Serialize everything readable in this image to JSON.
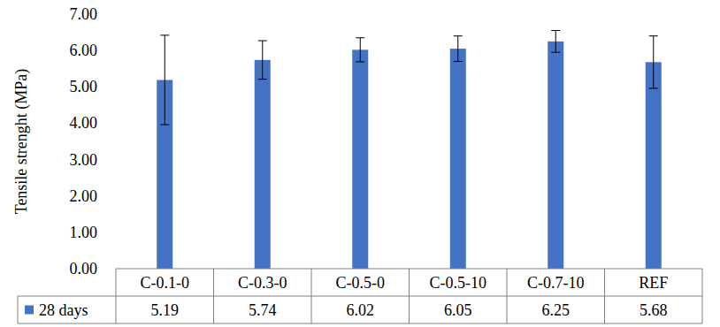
{
  "chart_data": {
    "type": "bar",
    "y_label": "Tensile strenght (MPa)",
    "categories": [
      "C-0.1-0",
      "C-0.3-0",
      "C-0.5-0",
      "C-0.5-10",
      "C-0.7-10",
      "REF"
    ],
    "series": [
      {
        "name": "28 days",
        "color": "#4472c4",
        "values": [
          5.19,
          5.74,
          6.02,
          6.05,
          6.25,
          5.68
        ],
        "errors": [
          1.23,
          0.53,
          0.33,
          0.35,
          0.3,
          0.72
        ]
      }
    ],
    "ylim": [
      0,
      7
    ],
    "yticks": [
      {
        "value": 0,
        "label": "0.00"
      },
      {
        "value": 1,
        "label": "1.00"
      },
      {
        "value": 2,
        "label": "2.00"
      },
      {
        "value": 3,
        "label": "3.00"
      },
      {
        "value": 4,
        "label": "4.00"
      },
      {
        "value": 5,
        "label": "5.00"
      },
      {
        "value": 6,
        "label": "6.00"
      },
      {
        "value": 7,
        "label": "7.00"
      }
    ],
    "grid": false
  }
}
